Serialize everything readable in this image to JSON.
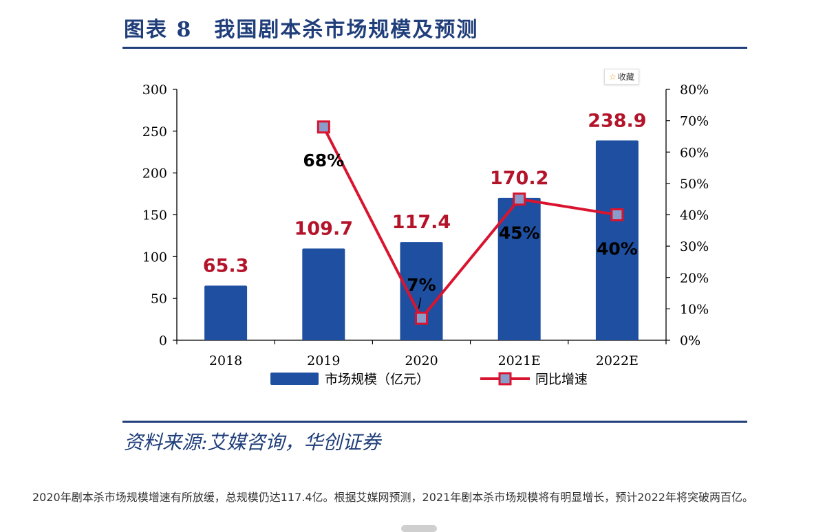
{
  "figure": {
    "title": "图表 8　我国剧本杀市场规模及预测",
    "source": "资料来源:艾媒咨询，华创证券"
  },
  "toolbar": {
    "favorite_label": "收藏"
  },
  "caption": "2020年剧本杀市场规模增速有所放缓，总规模仍达117.4亿。根据艾媒网预测，2021年剧本杀市场规模将有明显增长，预计2022年将突破两百亿。",
  "chart_data": {
    "type": "bar",
    "categories": [
      "2018",
      "2019",
      "2020",
      "2021E",
      "2022E"
    ],
    "series": [
      {
        "name": "市场规模（亿元）",
        "type": "bar",
        "axis": "left",
        "values": [
          65.3,
          109.7,
          117.4,
          170.2,
          238.9
        ],
        "labels": [
          "65.3",
          "109.7",
          "117.4",
          "170.2",
          "238.9"
        ],
        "color": "#1e4fa0"
      },
      {
        "name": "同比增速",
        "type": "line",
        "axis": "right",
        "values": [
          null,
          68,
          7,
          45,
          40
        ],
        "labels": [
          "",
          "68%",
          "7%",
          "45%",
          "40%"
        ],
        "color": "#d9142f"
      }
    ],
    "y_left": {
      "ylim": [
        0,
        300
      ],
      "ticks": [
        "0",
        "50",
        "100",
        "150",
        "200",
        "250",
        "300"
      ]
    },
    "y_right": {
      "ylim": [
        0,
        80
      ],
      "ticks": [
        "0%",
        "10%",
        "20%",
        "30%",
        "40%",
        "50%",
        "60%",
        "70%",
        "80%"
      ]
    },
    "legend_position": "bottom",
    "grid": false,
    "value_label_color": "#b3142a"
  }
}
